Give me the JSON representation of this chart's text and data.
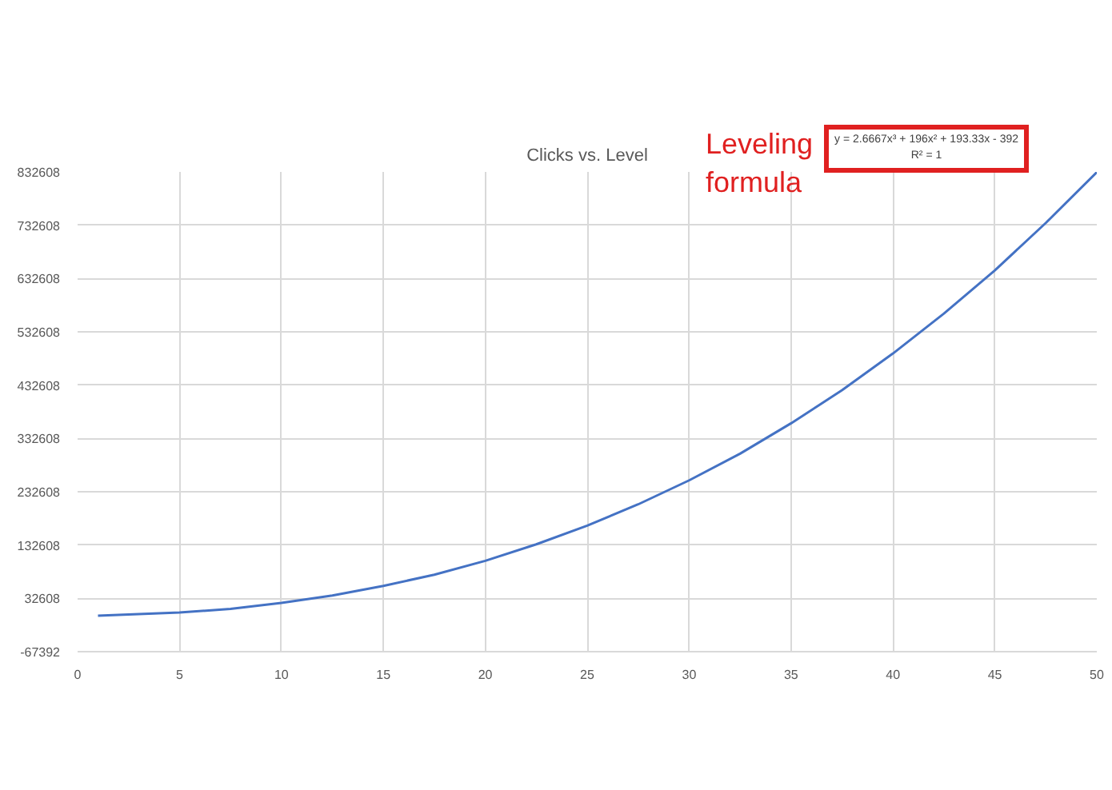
{
  "chart_data": {
    "type": "line",
    "title": "Clicks vs. Level",
    "x": [
      1,
      5,
      7.5,
      10,
      12.5,
      15,
      17.5,
      20,
      22.5,
      25,
      27.5,
      30,
      32.5,
      35,
      37.5,
      40,
      42.5,
      45,
      47.5,
      50
    ],
    "series": [
      {
        "color": "#4472c4",
        "values": [
          0,
          6000,
          13000,
          24000,
          38000,
          56000,
          77000,
          103000,
          134000,
          169000,
          209000,
          254000,
          304000,
          361000,
          423000,
          492000,
          567000,
          648000,
          737000,
          832000
        ]
      }
    ],
    "xlim": [
      0,
      50
    ],
    "xticks": [
      0,
      5,
      10,
      15,
      20,
      25,
      30,
      35,
      40,
      45,
      50
    ],
    "ylim": [
      -67392,
      832608
    ],
    "yticks": [
      -67392,
      32608,
      132608,
      232608,
      332608,
      432608,
      532608,
      632608,
      732608,
      832608
    ],
    "grid": true,
    "marker": "none",
    "line_style": "solid",
    "annotations": [
      "Leveling formula",
      "y = 2.6667x³ + 196x² + 193.33x - 392",
      "R² = 1"
    ]
  }
}
